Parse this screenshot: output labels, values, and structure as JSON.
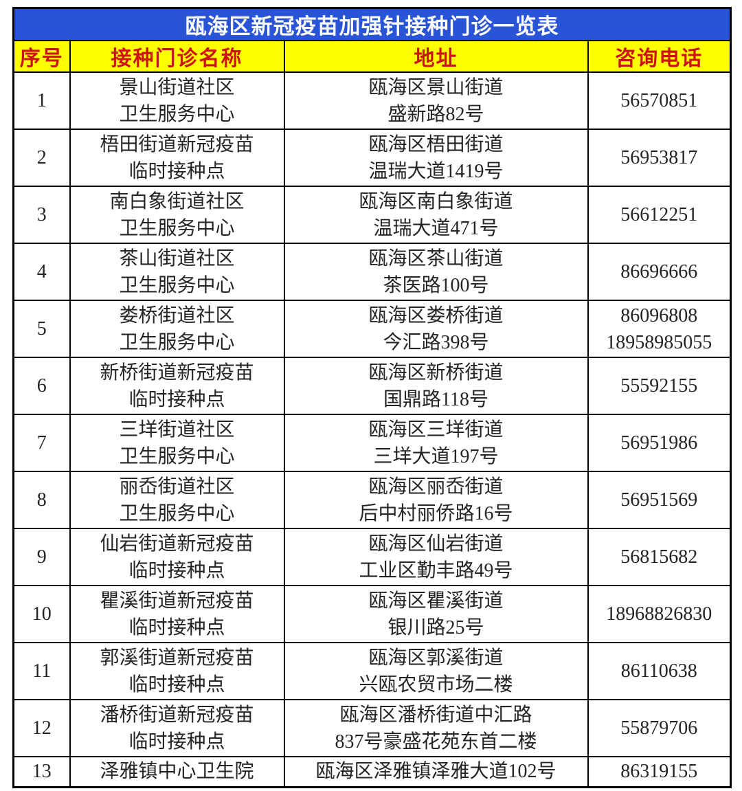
{
  "table": {
    "title": "瓯海区新冠疫苗加强针接种门诊一览表",
    "columns": [
      "序号",
      "接种门诊名称",
      "地址",
      "咨询电话"
    ],
    "colors": {
      "title_bg": "#2a54d6",
      "title_text": "#ffffff",
      "header_bg": "#ffff00",
      "header_text": "#cc1111",
      "body_text": "#242424",
      "border": "#000000"
    },
    "rows": [
      {
        "no": "1",
        "name": [
          "景山街道社区",
          "卫生服务中心"
        ],
        "addr": [
          "瓯海区景山街道",
          "盛新路82号"
        ],
        "phone": [
          "56570851"
        ]
      },
      {
        "no": "2",
        "name": [
          "梧田街道新冠疫苗",
          "临时接种点"
        ],
        "addr": [
          "瓯海区梧田街道",
          "温瑞大道1419号"
        ],
        "phone": [
          "56953817"
        ]
      },
      {
        "no": "3",
        "name": [
          "南白象街道社区",
          "卫生服务中心"
        ],
        "addr": [
          "瓯海区南白象街道",
          "温瑞大道471号"
        ],
        "phone": [
          "56612251"
        ]
      },
      {
        "no": "4",
        "name": [
          "茶山街道社区",
          "卫生服务中心"
        ],
        "addr": [
          "瓯海区茶山街道",
          "茶医路100号"
        ],
        "phone": [
          "86696666"
        ]
      },
      {
        "no": "5",
        "name": [
          "娄桥街道社区",
          "卫生服务中心"
        ],
        "addr": [
          "瓯海区娄桥街道",
          "今汇路398号"
        ],
        "phone": [
          "86096808",
          "18958985055"
        ]
      },
      {
        "no": "6",
        "name": [
          "新桥街道新冠疫苗",
          "临时接种点"
        ],
        "addr": [
          "瓯海区新桥街道",
          "国鼎路118号"
        ],
        "phone": [
          "55592155"
        ]
      },
      {
        "no": "7",
        "name": [
          "三垟街道社区",
          "卫生服务中心"
        ],
        "addr": [
          "瓯海区三垟街道",
          "三垟大道197号"
        ],
        "phone": [
          "56951986"
        ]
      },
      {
        "no": "8",
        "name": [
          "丽岙街道社区",
          "卫生服务中心"
        ],
        "addr": [
          "瓯海区丽岙街道",
          "后中村丽侨路16号"
        ],
        "phone": [
          "56951569"
        ]
      },
      {
        "no": "9",
        "name": [
          "仙岩街道新冠疫苗",
          "临时接种点"
        ],
        "addr": [
          "瓯海区仙岩街道",
          "工业区勤丰路49号"
        ],
        "phone": [
          "56815682"
        ]
      },
      {
        "no": "10",
        "name": [
          "瞿溪街道新冠疫苗",
          "临时接种点"
        ],
        "addr": [
          "瓯海区瞿溪街道",
          "银川路25号"
        ],
        "phone": [
          "18968826830"
        ]
      },
      {
        "no": "11",
        "name": [
          "郭溪街道新冠疫苗",
          "临时接种点"
        ],
        "addr": [
          "瓯海区郭溪街道",
          "兴瓯农贸市场二楼"
        ],
        "phone": [
          "86110638"
        ]
      },
      {
        "no": "12",
        "name": [
          "潘桥街道新冠疫苗",
          "临时接种点"
        ],
        "addr": [
          "瓯海区潘桥街道中汇路",
          "837号豪盛花苑东首二楼"
        ],
        "phone": [
          "55879706"
        ]
      },
      {
        "no": "13",
        "name": [
          "泽雅镇中心卫生院"
        ],
        "addr": [
          "瓯海区泽雅镇泽雅大道102号"
        ],
        "phone": [
          "86319155"
        ]
      }
    ]
  }
}
